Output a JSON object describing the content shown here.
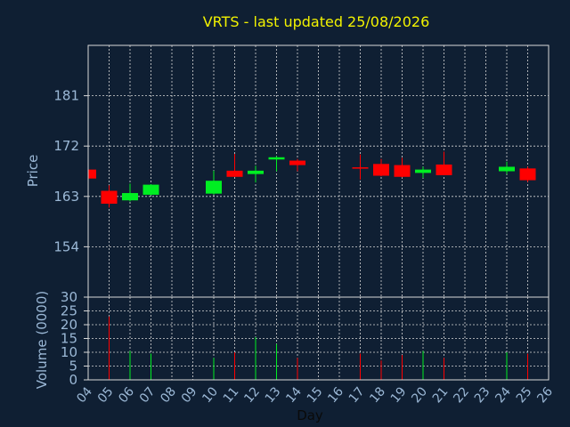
{
  "colors": {
    "background": "#0f1f33",
    "axis_text": "#9bb8d6",
    "title": "#f2f200",
    "up": "#00ee22",
    "down": "#ff0000",
    "grid": "#d8d8d8"
  },
  "chart_data": {
    "type": "candlestick",
    "title": "VRTS - last updated 25/08/2026",
    "xlabel": "Day",
    "ylabel": "Price",
    "y2label": "Volume (0000)",
    "ylim": [
      145,
      190
    ],
    "yticks": [
      154,
      163,
      172,
      181
    ],
    "vol_ylim": [
      0,
      30
    ],
    "vol_yticks": [
      0,
      5,
      10,
      15,
      20,
      25,
      30
    ],
    "xticks": [
      "04",
      "05",
      "06",
      "07",
      "08",
      "09",
      "10",
      "11",
      "12",
      "13",
      "14",
      "15",
      "16",
      "17",
      "18",
      "19",
      "20",
      "21",
      "22",
      "23",
      "24",
      "25",
      "26"
    ],
    "grid": true,
    "candles": [
      {
        "day": 4,
        "open": 167.8,
        "high": 168.0,
        "low": 166.0,
        "close": 166.2,
        "volume": 0
      },
      {
        "day": 5,
        "open": 164.0,
        "high": 165.0,
        "low": 161.0,
        "close": 161.7,
        "volume": 23.0
      },
      {
        "day": 6,
        "open": 162.3,
        "high": 165.3,
        "low": 162.1,
        "close": 163.6,
        "volume": 10.5
      },
      {
        "day": 7,
        "open": 163.3,
        "high": 165.2,
        "low": 163.2,
        "close": 165.1,
        "volume": 9.5
      },
      {
        "day": 10,
        "open": 163.5,
        "high": 167.6,
        "low": 163.3,
        "close": 165.8,
        "volume": 8.0
      },
      {
        "day": 11,
        "open": 167.6,
        "high": 170.6,
        "low": 166.5,
        "close": 166.5,
        "volume": 10.0
      },
      {
        "day": 12,
        "open": 167.0,
        "high": 168.5,
        "low": 165.5,
        "close": 167.6,
        "volume": 15.5
      },
      {
        "day": 13,
        "open": 169.6,
        "high": 170.2,
        "low": 167.5,
        "close": 170.0,
        "volume": 13.0
      },
      {
        "day": 14,
        "open": 169.4,
        "high": 169.7,
        "low": 167.5,
        "close": 168.6,
        "volume": 8.0
      },
      {
        "day": 17,
        "open": 168.2,
        "high": 170.5,
        "low": 166.0,
        "close": 168.0,
        "volume": 9.5
      },
      {
        "day": 18,
        "open": 168.8,
        "high": 169.7,
        "low": 166.6,
        "close": 166.7,
        "volume": 7.0
      },
      {
        "day": 19,
        "open": 168.6,
        "high": 169.9,
        "low": 166.4,
        "close": 166.5,
        "volume": 9.0
      },
      {
        "day": 20,
        "open": 167.2,
        "high": 168.3,
        "low": 166.3,
        "close": 167.8,
        "volume": 10.5
      },
      {
        "day": 21,
        "open": 168.7,
        "high": 171.0,
        "low": 166.8,
        "close": 166.8,
        "volume": 8.0
      },
      {
        "day": 24,
        "open": 167.5,
        "high": 169.2,
        "low": 167.0,
        "close": 168.3,
        "volume": 10.0
      },
      {
        "day": 25,
        "open": 168.0,
        "high": 168.3,
        "low": 165.6,
        "close": 165.9,
        "volume": 9.5
      }
    ]
  }
}
